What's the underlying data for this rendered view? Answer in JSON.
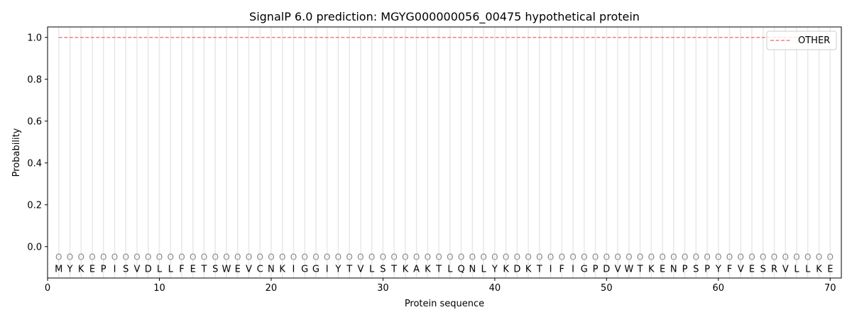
{
  "chart_data": {
    "type": "line",
    "title": "SignalP 6.0 prediction: MGYG000000056_00475 hypothetical protein",
    "xlabel": "Protein sequence",
    "ylabel": "Probability",
    "xlim": [
      0,
      71
    ],
    "ylim": [
      -0.15,
      1.05
    ],
    "xticks": [
      0,
      10,
      20,
      30,
      40,
      50,
      60,
      70
    ],
    "yticks": [
      0.0,
      0.2,
      0.4,
      0.6,
      0.8,
      1.0
    ],
    "ytick_labels": [
      "0.0",
      "0.2",
      "0.4",
      "0.6",
      "0.8",
      "1.0"
    ],
    "sequence": "MYKEPISVDLLFETSWEVCNKIGGIYTVLSTKAKTLQNLYKDKTIFIGPDVWTKENPSPYFVESRVLLKE",
    "predicted_label": "O",
    "series": [
      {
        "name": "OTHER",
        "color": "#f08080",
        "style": "dashed",
        "x_range": [
          1,
          70
        ],
        "value": 1.0
      }
    ],
    "legend_position": "top-right",
    "grid": "vertical lines at each residue"
  }
}
